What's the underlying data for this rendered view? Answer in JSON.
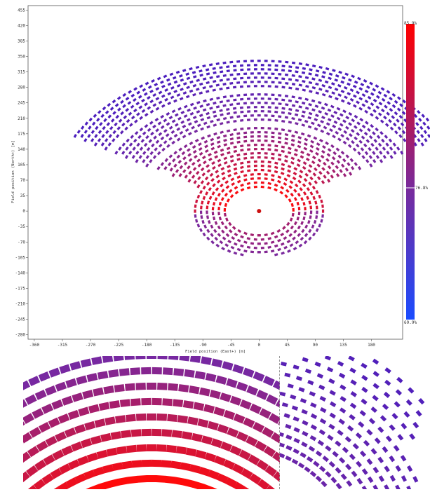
{
  "chart_data": {
    "type": "scatter",
    "title": "",
    "xlabel": "Field position (East+) [m]",
    "ylabel": "Field position (North+) [m]",
    "x_ticks": [
      -360,
      -315,
      -270,
      -225,
      -180,
      -135,
      -90,
      -45,
      0,
      45,
      90,
      135,
      180
    ],
    "y_ticks": [
      455,
      420,
      385,
      350,
      315,
      280,
      245,
      210,
      175,
      140,
      105,
      70,
      35,
      0,
      -35,
      -70,
      -105,
      -140,
      -175,
      -210,
      -245,
      -280
    ],
    "xlim": [
      -370,
      230
    ],
    "ylim": [
      -290,
      465
    ],
    "tower": {
      "x": 0,
      "y": 0,
      "color": "#cc1111"
    },
    "field": {
      "center": [
        0,
        0
      ],
      "inner_radius": 50,
      "outer_radius": 340,
      "half_angle_deg": 60,
      "color_variable": "efficiency"
    },
    "colorbar": {
      "max_label": "85.9%",
      "mid_label": "76.8%",
      "min_label": "69.9%",
      "max_color": "#ff0000",
      "mid_color": "#7a2a9a",
      "min_color": "#1a4cff"
    },
    "insets": [
      {
        "name": "zoom-inner-ring",
        "region": "inner rows near tower"
      },
      {
        "name": "zoom-outer-edge",
        "region": "outer rows, east edge"
      }
    ]
  }
}
